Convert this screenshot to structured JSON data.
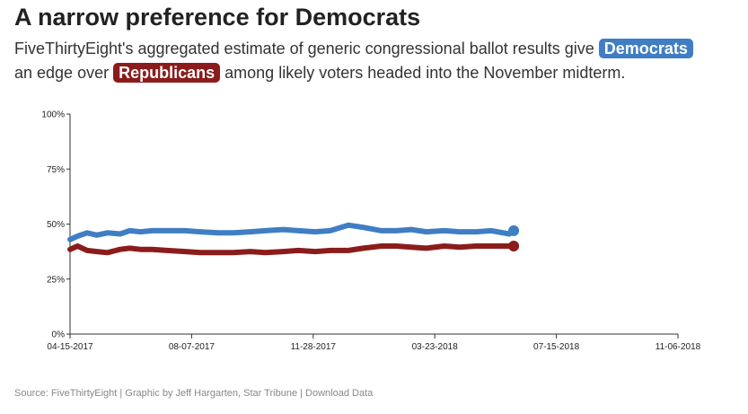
{
  "header": {
    "title": "A narrow preference for Democrats",
    "subtitle_part1": "FiveThirtyEight's aggregated estimate of generic congressional ballot results give",
    "subtitle_part2": "an edge over",
    "subtitle_part3": "among likely voters headed into the November midterm.",
    "dem_label": "Democrats",
    "rep_label": "Republicans"
  },
  "colors": {
    "democrats": "#3f7ec4",
    "republicans": "#8b1c1c",
    "axis": "#333333"
  },
  "chart_data": {
    "type": "line",
    "xlabel": "",
    "ylabel": "",
    "x_domain": [
      "2017-04-15",
      "2018-11-06"
    ],
    "ylim": [
      0,
      100
    ],
    "y_ticks": [
      0,
      25,
      50,
      75,
      100
    ],
    "y_tick_labels": [
      "0%",
      "25%",
      "50%",
      "75%",
      "100%"
    ],
    "x_tick_labels": [
      "04-15-2017",
      "08-07-2017",
      "11-28-2017",
      "03-23-2018",
      "07-15-2018",
      "11-06-2018"
    ],
    "grid": false,
    "x": [
      "2017-04-15",
      "2017-04-22",
      "2017-05-01",
      "2017-05-10",
      "2017-05-20",
      "2017-06-01",
      "2017-06-10",
      "2017-06-20",
      "2017-07-01",
      "2017-07-15",
      "2017-08-01",
      "2017-08-15",
      "2017-09-01",
      "2017-09-15",
      "2017-10-01",
      "2017-10-15",
      "2017-11-01",
      "2017-11-15",
      "2017-12-01",
      "2017-12-15",
      "2018-01-01",
      "2018-01-15",
      "2018-02-01",
      "2018-02-15",
      "2018-03-01",
      "2018-03-15",
      "2018-04-01",
      "2018-04-15",
      "2018-05-01",
      "2018-05-15",
      "2018-06-01",
      "2018-06-05"
    ],
    "series": [
      {
        "name": "Democrats",
        "values": [
          43,
          44.5,
          46,
          45,
          46,
          45.5,
          47,
          46.5,
          47,
          47,
          47,
          46.5,
          46,
          46,
          46.5,
          47,
          47.5,
          47,
          46.5,
          47,
          49.5,
          48.5,
          47,
          47,
          47.5,
          46.5,
          47,
          46.5,
          46.5,
          47,
          45.5,
          47
        ]
      },
      {
        "name": "Republicans",
        "values": [
          38.5,
          40,
          38,
          37.5,
          37,
          38.5,
          39,
          38.5,
          38.5,
          38,
          37.5,
          37,
          37,
          37,
          37.5,
          37,
          37.5,
          38,
          37.5,
          38,
          38,
          39,
          40,
          40,
          39.5,
          39,
          40,
          39.5,
          40,
          40,
          40,
          40
        ]
      }
    ]
  },
  "footer": {
    "source": "Source: FiveThirtyEight | Graphic by Jeff Hargarten, Star Tribune | Download Data"
  }
}
